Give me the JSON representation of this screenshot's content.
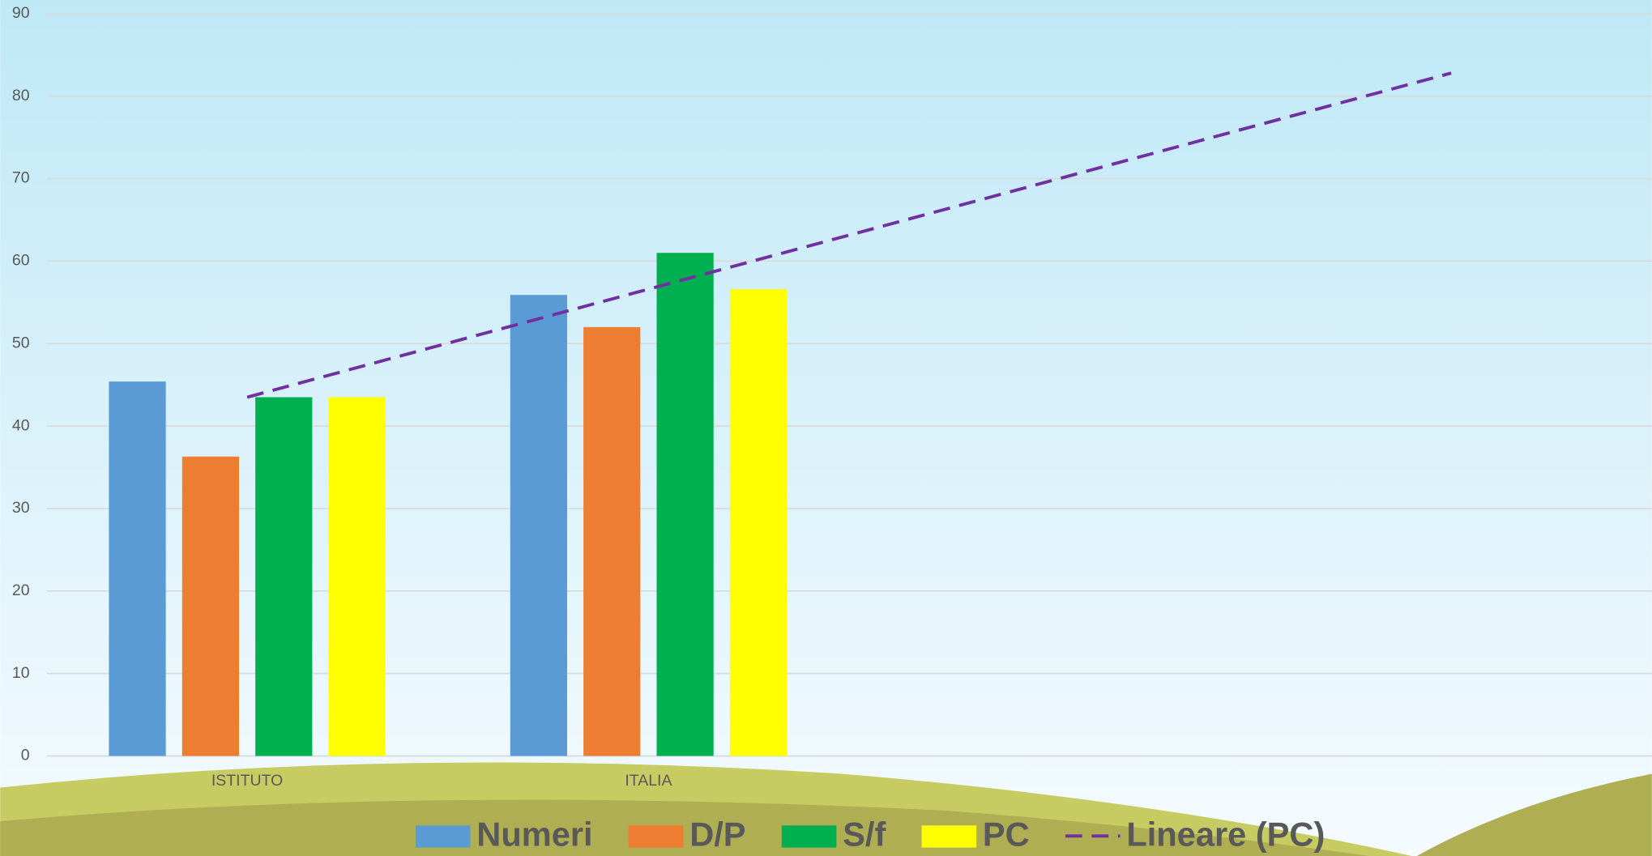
{
  "chart_data": {
    "type": "bar",
    "categories": [
      "ISTITUTO",
      "ITALIA",
      null,
      null
    ],
    "series": [
      {
        "name": "Numeri",
        "color": "#5b9bd5",
        "values": [
          45.4,
          55.9,
          null,
          null
        ]
      },
      {
        "name": "D/P",
        "color": "#ed7d31",
        "values": [
          36.3,
          52.0,
          null,
          null
        ]
      },
      {
        "name": "S/f",
        "color": "#00b050",
        "values": [
          43.5,
          61.0,
          null,
          null
        ]
      },
      {
        "name": "PC",
        "color": "#ffff00",
        "values": [
          43.5,
          56.6,
          null,
          null
        ]
      }
    ],
    "trendline": {
      "name": "Lineare (PC)",
      "series": 3,
      "kind": "linear",
      "color": "#7030a0"
    },
    "ylim": [
      0,
      90
    ],
    "yticks": [
      0,
      10,
      20,
      30,
      40,
      50,
      60,
      70,
      80,
      90
    ],
    "grid": true,
    "legend": "bottom"
  }
}
